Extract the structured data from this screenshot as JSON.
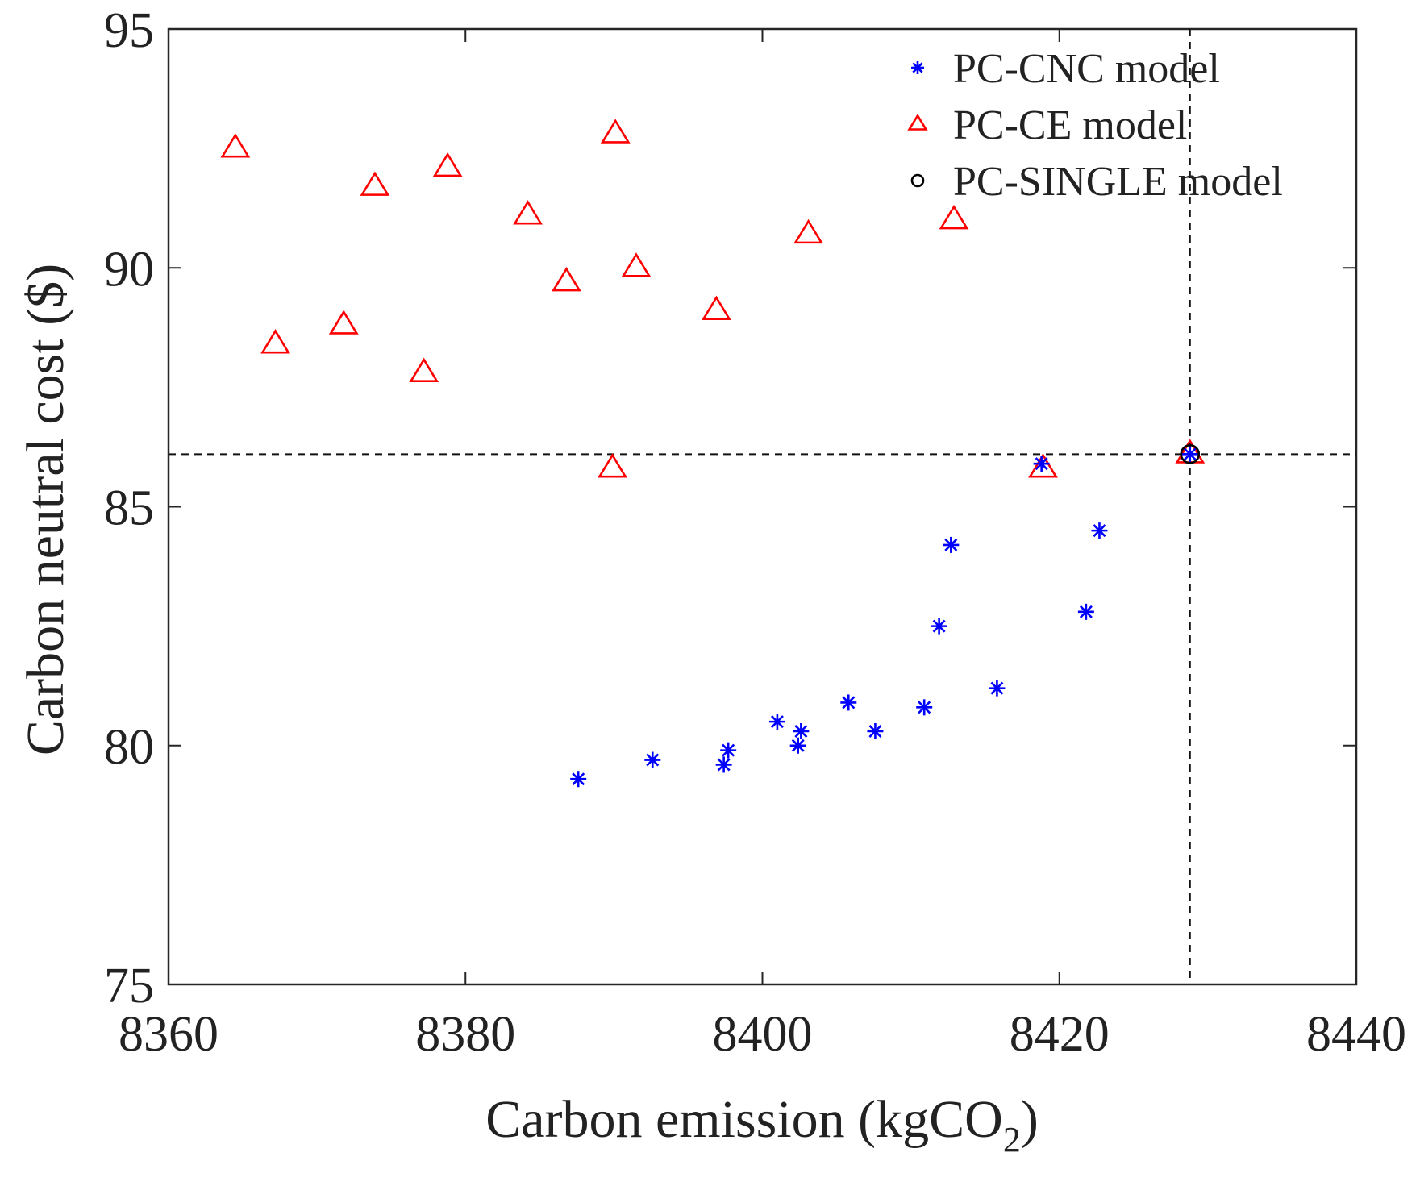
{
  "chart_data": {
    "type": "scatter",
    "xlabel": "Carbon emission (kgCO",
    "xlabel_subscript": "2",
    "xlabel_close": ")",
    "ylabel": "Carbon neutral cost ($)",
    "xlim": [
      8360,
      8440
    ],
    "ylim": [
      75,
      95
    ],
    "xticks": [
      8360,
      8380,
      8400,
      8420,
      8440
    ],
    "yticks": [
      75,
      80,
      85,
      90,
      95
    ],
    "reference_lines": {
      "x": 8428.8,
      "y": 86.1
    },
    "legend_position": "top-right",
    "series": [
      {
        "name": "PC-CNC model",
        "marker": "asterisk",
        "color": "#0000ff",
        "points": [
          [
            8387.6,
            79.3
          ],
          [
            8392.6,
            79.7
          ],
          [
            8397.4,
            79.6
          ],
          [
            8397.7,
            79.9
          ],
          [
            8401.0,
            80.5
          ],
          [
            8402.4,
            80.0
          ],
          [
            8402.6,
            80.3
          ],
          [
            8405.8,
            80.9
          ],
          [
            8407.6,
            80.3
          ],
          [
            8410.9,
            80.8
          ],
          [
            8411.9,
            82.5
          ],
          [
            8412.7,
            84.2
          ],
          [
            8415.8,
            81.2
          ],
          [
            8418.8,
            85.9
          ],
          [
            8421.8,
            82.8
          ],
          [
            8422.7,
            84.5
          ],
          [
            8428.8,
            86.1
          ]
        ]
      },
      {
        "name": "PC-CE model",
        "marker": "triangle",
        "color": "#ff0000",
        "points": [
          [
            8364.5,
            92.5
          ],
          [
            8367.2,
            88.4
          ],
          [
            8371.8,
            88.8
          ],
          [
            8373.9,
            91.7
          ],
          [
            8377.2,
            87.8
          ],
          [
            8378.8,
            92.1
          ],
          [
            8384.2,
            91.1
          ],
          [
            8386.8,
            89.7
          ],
          [
            8389.9,
            85.8
          ],
          [
            8390.1,
            92.8
          ],
          [
            8391.5,
            90.0
          ],
          [
            8396.9,
            89.1
          ],
          [
            8403.1,
            90.7
          ],
          [
            8412.9,
            91.0
          ],
          [
            8418.9,
            85.8
          ],
          [
            8428.8,
            86.1
          ]
        ]
      },
      {
        "name": "PC-SINGLE model",
        "marker": "circle",
        "color": "#000000",
        "points": [
          [
            8428.8,
            86.1
          ]
        ]
      }
    ]
  }
}
